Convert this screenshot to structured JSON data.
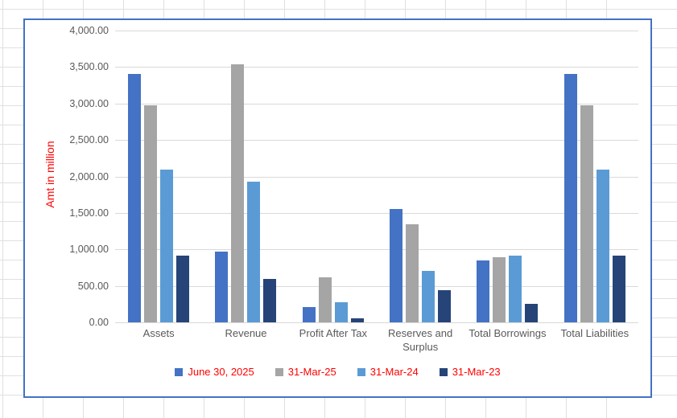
{
  "chart_data": {
    "type": "bar",
    "title": "",
    "categories": [
      "Assets",
      "Revenue",
      "Profit After Tax",
      "Reserves and Surplus",
      "Total Borrowings",
      "Total Liabilities"
    ],
    "series": [
      {
        "name": "June 30, 2025",
        "color": "#4472C4",
        "values": [
          3410,
          970,
          205,
          1550,
          845,
          3410
        ]
      },
      {
        "name": "31-Mar-25",
        "color": "#A5A5A5",
        "values": [
          2970,
          3535,
          620,
          1340,
          895,
          2970
        ]
      },
      {
        "name": "31-Mar-24",
        "color": "#5B9BD5",
        "values": [
          2095,
          1930,
          275,
          710,
          910,
          2095
        ]
      },
      {
        "name": "31-Mar-23",
        "color": "#264478",
        "values": [
          910,
          600,
          50,
          440,
          255,
          910
        ]
      }
    ],
    "xlabel": "",
    "ylabel": "Amt in million",
    "ylim": [
      0,
      4000
    ],
    "ytick_step": 500,
    "ytick_labels_top_to_bottom": [
      "4,000.00",
      "3,500.00",
      "3,000.00",
      "2,500.00",
      "2,000.00",
      "1,500.00",
      "1,000.00",
      "500.00",
      "0.00"
    ],
    "grid": true,
    "legend_position": "bottom"
  },
  "colors": {
    "axis_title": "#FF0000",
    "legend_text": "#FF0000",
    "tick_text": "#595959",
    "gridline": "#D9D9D9",
    "chart_border": "#4472C4",
    "sheet_gridline": "#E0E0E0",
    "chart_background": "#FFFFFF"
  }
}
